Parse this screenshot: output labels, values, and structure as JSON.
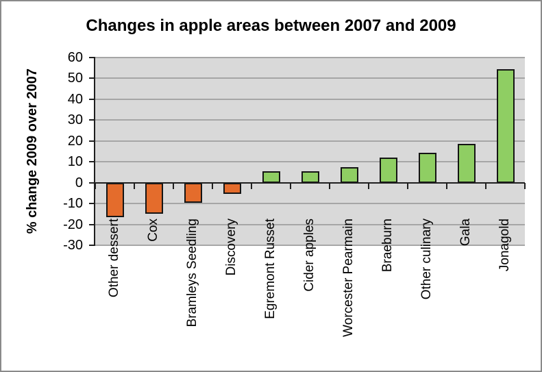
{
  "window": {
    "background": "#ffffff",
    "border_color": "#8a8a8a"
  },
  "chart_data": {
    "type": "bar",
    "title": "Changes in apple areas between 2007 and 2009",
    "xlabel": "",
    "ylabel": "% change 2009 over 2007",
    "categories": [
      "Other dessert",
      "Cox",
      "Bramleys Seedling",
      "Discovery",
      "Egremont Russet",
      "Cider apples",
      "Worcester Pearmain",
      "Braeburn",
      "Other culinary",
      "Gala",
      "Jonagold"
    ],
    "values": [
      -16.5,
      -15,
      -9.5,
      -5.5,
      5.5,
      5.5,
      7.5,
      12,
      14.5,
      18.5,
      54.5
    ],
    "ylim": [
      -30,
      60
    ],
    "yticks": [
      60,
      50,
      40,
      30,
      20,
      10,
      0,
      -10,
      -20,
      -30
    ],
    "grid": true,
    "legend": false,
    "plot_bg": "#d9d9d9",
    "gridline_color": "#a6a6a6",
    "axis_color": "#1f1f1f",
    "bar_border_color": "#141414",
    "positive_color": "#8fce63",
    "negative_color": "#e46c2c"
  }
}
